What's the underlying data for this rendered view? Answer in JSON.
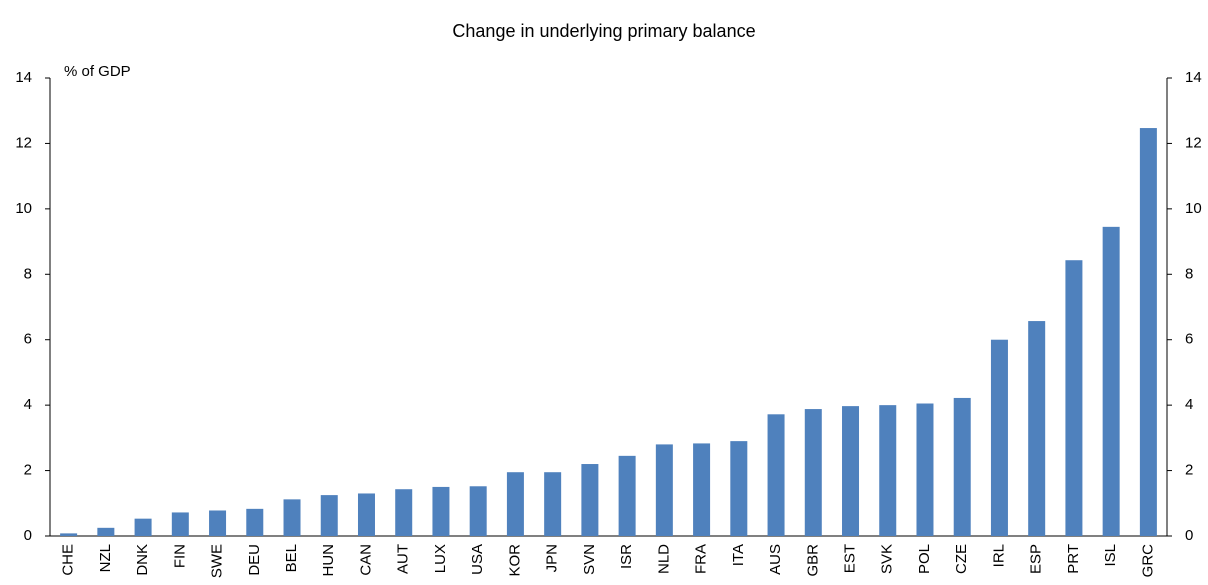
{
  "chart_data": {
    "type": "bar",
    "title": "Change in underlying primary balance",
    "y_axis_label": "% of GDP",
    "categories": [
      "CHE",
      "NZL",
      "DNK",
      "FIN",
      "SWE",
      "DEU",
      "BEL",
      "HUN",
      "CAN",
      "AUT",
      "LUX",
      "USA",
      "KOR",
      "JPN",
      "SVN",
      "ISR",
      "NLD",
      "FRA",
      "ITA",
      "AUS",
      "GBR",
      "EST",
      "SVK",
      "POL",
      "CZE",
      "IRL",
      "ESP",
      "PRT",
      "ISL",
      "GRC"
    ],
    "values": [
      0.08,
      0.25,
      0.53,
      0.72,
      0.78,
      0.83,
      1.12,
      1.25,
      1.3,
      1.43,
      1.5,
      1.52,
      1.95,
      1.95,
      2.2,
      2.45,
      2.8,
      2.83,
      2.9,
      3.72,
      3.88,
      3.97,
      4.0,
      4.05,
      4.22,
      6.0,
      6.57,
      8.43,
      9.45,
      12.47
    ],
    "color": "#4f81bd",
    "ylim": [
      0,
      14
    ],
    "yticks": [
      0,
      2,
      4,
      6,
      8,
      10,
      12,
      14
    ],
    "y2lim": [
      0,
      14
    ],
    "y2ticks": [
      0,
      2,
      4,
      6,
      8,
      10,
      12,
      14
    ],
    "grid": false
  }
}
